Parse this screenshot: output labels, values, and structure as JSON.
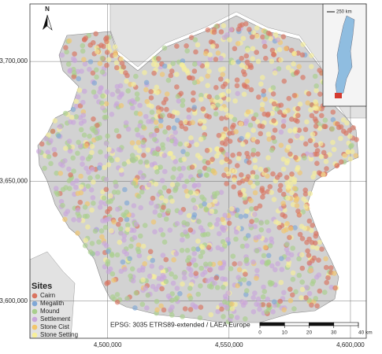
{
  "map": {
    "north_label": "N",
    "xlim": [
      4468000,
      4606500
    ],
    "ylim": [
      3584500,
      3724000
    ],
    "xticks": [
      {
        "value": 4500000,
        "label": "4,500,000"
      },
      {
        "value": 4550000,
        "label": "4,550,000"
      },
      {
        "value": 4600000,
        "label": "4,600,000"
      }
    ],
    "yticks": [
      {
        "value": 3600000,
        "label": "3,600,000"
      },
      {
        "value": 3650000,
        "label": "3,650,000"
      },
      {
        "value": 3700000,
        "label": "3,700,000"
      }
    ],
    "grid": true,
    "legend": {
      "title": "Sites",
      "items": [
        {
          "name": "Cairn",
          "color": "#d9735f"
        },
        {
          "name": "Megalith",
          "color": "#7fa7d6"
        },
        {
          "name": "Mound",
          "color": "#a9cf8c"
        },
        {
          "name": "Settlement",
          "color": "#c9a6dc"
        },
        {
          "name": "Stone Cist",
          "color": "#f2c66b"
        },
        {
          "name": "Stone Setting",
          "color": "#f7ef99"
        }
      ]
    },
    "crs_label": "EPSG: 3035 ETRS89-extended / LAEA Europe",
    "scale_bar": {
      "ticks": [
        0,
        10,
        20,
        30,
        {
          "value": 40,
          "label": "40 km"
        }
      ]
    },
    "inset": {
      "scale_label": "250 km"
    }
  }
}
